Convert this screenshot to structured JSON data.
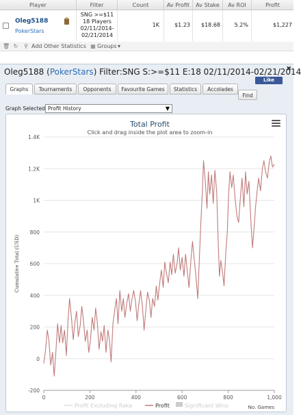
{
  "stats_table": {
    "headers": [
      "Player",
      "Filter",
      "Count",
      "Av Profit",
      "Av Stake",
      "Av ROI",
      "Profit"
    ],
    "row": {
      "player": "Oleg5188",
      "site": "PokerStars",
      "filter": "SNG >=$11\n18 Players\n02/11/2014-\n02/21/2014",
      "count": "1K",
      "av_profit": "$1.23",
      "av_stake": "$18.68",
      "av_roi": "5.2%",
      "profit": "$1,227"
    }
  },
  "toolbar": {
    "add_stats_label": "Add Other Statistics",
    "groups_label": "Groups"
  },
  "panel": {
    "title_player": "Oleg5188 (",
    "title_site": "PokerStars",
    "title_rest": ") Filter:SNG S:>=$11 E:18 02/11/2014-02/21/2014",
    "fb_label": "Like",
    "tabs": [
      "Graphs",
      "Tournaments",
      "Opponents",
      "Favourite Games",
      "Statistics",
      "Accolades"
    ],
    "find_label": "Find",
    "graph_selected_label": "Graph Selected:",
    "graph_selected_value": "Profit History"
  },
  "chart_data": {
    "type": "line",
    "title": "Total Profit",
    "subtitle": "Click and drag inside the plot area to zoom-in",
    "ylabel": "Cumulative Total (USD)",
    "xlabel": "No. Games",
    "xlim": [
      0,
      1000
    ],
    "ylim": [
      -200,
      1400
    ],
    "x_ticks": [
      "0",
      "200",
      "400",
      "600",
      "800",
      "1,000"
    ],
    "y_ticks": [
      "-200",
      "0",
      "200",
      "400",
      "600",
      "800",
      "1K",
      "1.2K",
      "1.4K"
    ],
    "legend": [
      "Profit Excluding Rake",
      "Profit",
      "Significant Wins"
    ],
    "legend_placement": "bottom",
    "grid": true,
    "line_color": "#c07a7a",
    "series": [
      {
        "name": "Profit",
        "points": [
          [
            0,
            -30
          ],
          [
            8,
            60
          ],
          [
            15,
            180
          ],
          [
            22,
            120
          ],
          [
            30,
            -40
          ],
          [
            38,
            40
          ],
          [
            45,
            -110
          ],
          [
            52,
            30
          ],
          [
            60,
            220
          ],
          [
            68,
            100
          ],
          [
            75,
            210
          ],
          [
            82,
            100
          ],
          [
            90,
            180
          ],
          [
            98,
            20
          ],
          [
            105,
            240
          ],
          [
            112,
            380
          ],
          [
            120,
            260
          ],
          [
            128,
            120
          ],
          [
            135,
            230
          ],
          [
            142,
            300
          ],
          [
            150,
            140
          ],
          [
            158,
            210
          ],
          [
            165,
            330
          ],
          [
            172,
            240
          ],
          [
            180,
            110
          ],
          [
            188,
            180
          ],
          [
            195,
            40
          ],
          [
            202,
            110
          ],
          [
            210,
            260
          ],
          [
            218,
            180
          ],
          [
            225,
            320
          ],
          [
            232,
            230
          ],
          [
            240,
            60
          ],
          [
            248,
            170
          ],
          [
            255,
            110
          ],
          [
            262,
            210
          ],
          [
            270,
            40
          ],
          [
            278,
            180
          ],
          [
            285,
            120
          ],
          [
            292,
            -20
          ],
          [
            300,
            220
          ],
          [
            308,
            310
          ],
          [
            315,
            380
          ],
          [
            322,
            220
          ],
          [
            330,
            430
          ],
          [
            338,
            300
          ],
          [
            345,
            380
          ],
          [
            352,
            260
          ],
          [
            360,
            350
          ],
          [
            368,
            410
          ],
          [
            375,
            300
          ],
          [
            382,
            370
          ],
          [
            390,
            430
          ],
          [
            398,
            360
          ],
          [
            405,
            240
          ],
          [
            412,
            340
          ],
          [
            420,
            430
          ],
          [
            428,
            330
          ],
          [
            435,
            180
          ],
          [
            442,
            300
          ],
          [
            450,
            420
          ],
          [
            458,
            370
          ],
          [
            465,
            260
          ],
          [
            472,
            380
          ],
          [
            480,
            330
          ],
          [
            488,
            460
          ],
          [
            495,
            370
          ],
          [
            502,
            470
          ],
          [
            510,
            560
          ],
          [
            518,
            450
          ],
          [
            525,
            610
          ],
          [
            532,
            540
          ],
          [
            540,
            480
          ],
          [
            548,
            610
          ],
          [
            555,
            530
          ],
          [
            562,
            660
          ],
          [
            570,
            540
          ],
          [
            578,
            600
          ],
          [
            585,
            700
          ],
          [
            592,
            560
          ],
          [
            600,
            640
          ],
          [
            608,
            520
          ],
          [
            615,
            660
          ],
          [
            622,
            560
          ],
          [
            630,
            450
          ],
          [
            638,
            620
          ],
          [
            645,
            740
          ],
          [
            652,
            640
          ],
          [
            660,
            520
          ],
          [
            668,
            380
          ],
          [
            675,
            640
          ],
          [
            682,
            880
          ],
          [
            688,
            1060
          ],
          [
            693,
            1250
          ],
          [
            700,
            1130
          ],
          [
            708,
            950
          ],
          [
            714,
            1180
          ],
          [
            720,
            1040
          ],
          [
            728,
            1160
          ],
          [
            735,
            980
          ],
          [
            742,
            1190
          ],
          [
            750,
            1050
          ],
          [
            756,
            760
          ],
          [
            762,
            520
          ],
          [
            768,
            620
          ],
          [
            775,
            550
          ],
          [
            782,
            460
          ],
          [
            790,
            680
          ],
          [
            796,
            800
          ],
          [
            802,
            1050
          ],
          [
            808,
            1180
          ],
          [
            815,
            1080
          ],
          [
            822,
            1160
          ],
          [
            830,
            1010
          ],
          [
            838,
            900
          ],
          [
            845,
            860
          ],
          [
            852,
            1000
          ],
          [
            860,
            1140
          ],
          [
            868,
            960
          ],
          [
            875,
            1180
          ],
          [
            882,
            1040
          ],
          [
            890,
            1120
          ],
          [
            898,
            880
          ],
          [
            905,
            700
          ],
          [
            912,
            820
          ],
          [
            918,
            950
          ],
          [
            925,
            1050
          ],
          [
            932,
            1140
          ],
          [
            940,
            1060
          ],
          [
            948,
            1200
          ],
          [
            955,
            1250
          ],
          [
            962,
            1180
          ],
          [
            970,
            1140
          ],
          [
            978,
            1240
          ],
          [
            985,
            1280
          ],
          [
            992,
            1210
          ],
          [
            1000,
            1227
          ]
        ]
      }
    ]
  }
}
